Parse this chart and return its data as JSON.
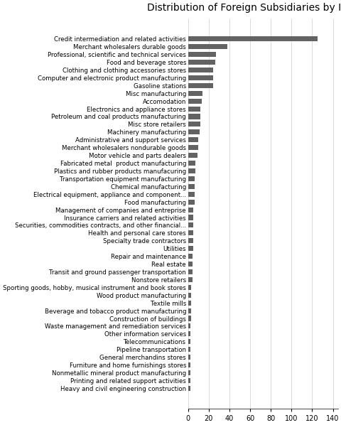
{
  "title": "Distribution of Foreign Subsidiaries by Industry",
  "categories": [
    "Credit intermediation and related activities",
    "Merchant wholesalers durable goods",
    "Professional, scientific and technical services",
    "Food and beverage stores",
    "Clothing and clothing accessories stores",
    "Computer and electronic product manufacturing",
    "Gasoline stations",
    "Misc manufacturing",
    "Accomodation",
    "Electronics and appliance stores",
    "Petroleum and coal products manufacturing",
    "Misc store retailers",
    "Machinery manufacturing",
    "Administrative and support services",
    "Merchant wholesalers nondurable goods",
    "Motor vehicle and parts dealers",
    "Fabricated metal  product manufacturing",
    "Plastics and rubber products manufacuring",
    "Transportation equipment manufacturing",
    "Chemical manufacturing",
    "Electrical equipment, appliance and component...",
    "Food manufacturing",
    "Management of companies and entreprise",
    "Insurance carriers and related activities",
    "Securities, commodities contracts, and other financial...",
    "Health and personal care stores",
    "Specialty trade contractors",
    "Utilities",
    "Repair and maintenance",
    "Real estate",
    "Transit and ground passenger transportation",
    "Nonstore retailers",
    "Sporting goods, hobby, musical instrument and book stores",
    "Wood product manufacturing",
    "Textile mills",
    "Beverage and tobacco product manufacturing",
    "Construction of buildings",
    "Waste management and remediation services",
    "Other information services",
    "Telecommunications",
    "Pipeline transportation",
    "General merchandins stores",
    "Furniture and home furnishings stores",
    "Nonmetallic mineral product manufacturing",
    "Printing and related support activities",
    "Heavy and civil engineering construction"
  ],
  "values": [
    125,
    38,
    27,
    26,
    24,
    24,
    24,
    14,
    13,
    12,
    12,
    12,
    11,
    10,
    10,
    9,
    7,
    7,
    6,
    6,
    6,
    6,
    5,
    5,
    5,
    5,
    5,
    5,
    4,
    4,
    4,
    4,
    3,
    3,
    3,
    3,
    3,
    2,
    2,
    2,
    2,
    2,
    2,
    2,
    2,
    2
  ],
  "bar_color": "#636363",
  "background_color": "#ffffff",
  "title_fontsize": 10,
  "label_fontsize": 6.2,
  "tick_fontsize": 7,
  "xlim": [
    0,
    145
  ],
  "xticks": [
    0,
    20,
    40,
    60,
    80,
    100,
    120,
    140
  ]
}
